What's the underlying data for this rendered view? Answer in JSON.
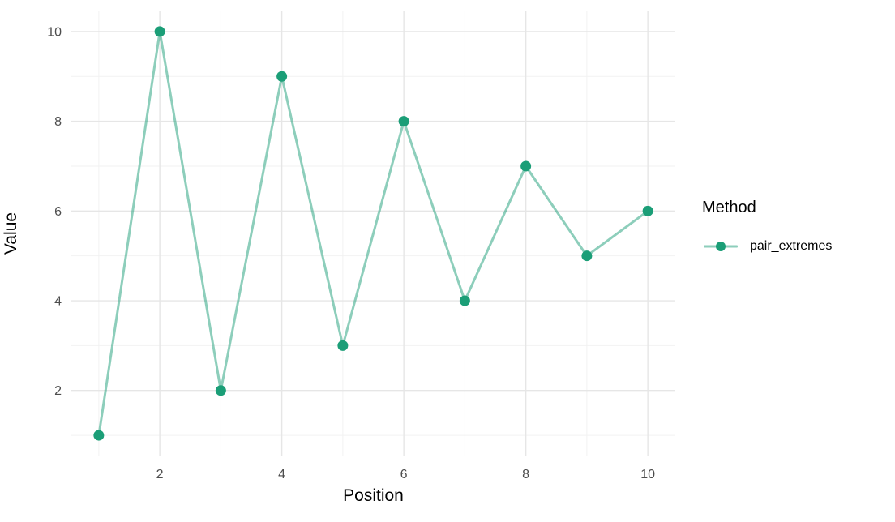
{
  "chart_data": {
    "type": "line",
    "title": "",
    "xlabel": "Position",
    "ylabel": "Value",
    "x": [
      1,
      2,
      3,
      4,
      5,
      6,
      7,
      8,
      9,
      10
    ],
    "series": [
      {
        "name": "pair_extremes",
        "values": [
          1,
          10,
          2,
          9,
          3,
          8,
          4,
          7,
          5,
          6
        ]
      }
    ],
    "x_ticks": [
      2,
      4,
      6,
      8,
      10
    ],
    "y_ticks": [
      2,
      4,
      6,
      8,
      10
    ],
    "x_minor": [
      1,
      3,
      5,
      7,
      9
    ],
    "y_minor": [
      1,
      3,
      5,
      7,
      9
    ],
    "xlim": [
      0.55,
      10.45
    ],
    "ylim": [
      0.55,
      10.45
    ],
    "grid": "major-and-minor, no axis lines, no panel border",
    "legend": {
      "title": "Method",
      "position": "right",
      "entries": [
        "pair_extremes"
      ]
    },
    "colors": {
      "point": "#1b9e77",
      "line": "rgba(27,158,119,0.5)",
      "grid_major": "#e6e6e6",
      "grid_minor": "#f2f2f2",
      "tick_text": "#4d4d4d",
      "title_text": "#000000",
      "background": "#ffffff"
    }
  }
}
